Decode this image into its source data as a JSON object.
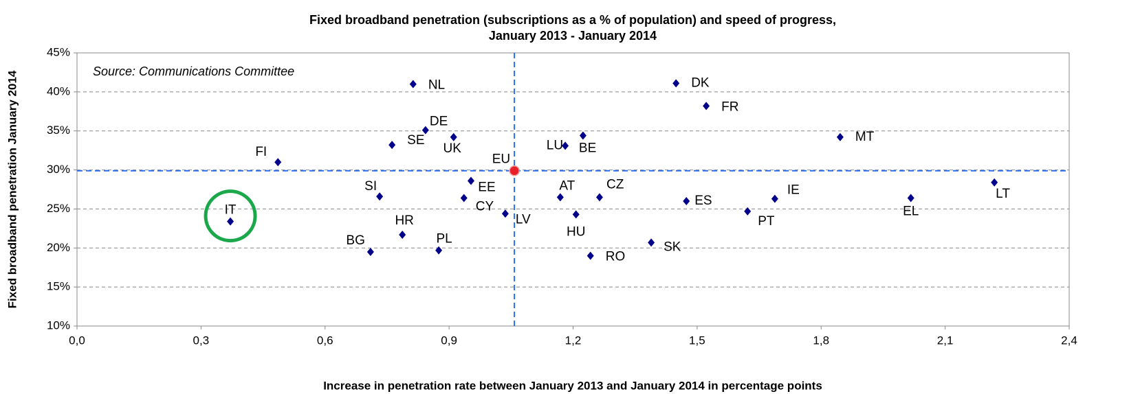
{
  "chart_data": {
    "type": "scatter",
    "title": [
      "Fixed broadband penetration (subscriptions as a % of population) and speed of progress,",
      "January 2013 - January 2014"
    ],
    "annotation": "Source: Communications Committee",
    "xlabel": "Increase in penetration rate between January 2013 and January 2014 in percentage points",
    "ylabel": "Fixed broadband penetration January 2014",
    "color": "#00008b",
    "highlight_color": "#e8202a",
    "reference_color": "#2a6cf0",
    "circle_color": "#1aa84a",
    "xlim": [
      0,
      2.4
    ],
    "xticks": [
      {
        "value": 0,
        "label": "0,0"
      },
      {
        "value": 0.3,
        "label": "0,3"
      },
      {
        "value": 0.6,
        "label": "0,6"
      },
      {
        "value": 0.9,
        "label": "0,9"
      },
      {
        "value": 1.2,
        "label": "1,2"
      },
      {
        "value": 1.5,
        "label": "1,5"
      },
      {
        "value": 1.8,
        "label": "1,8"
      },
      {
        "value": 2.1,
        "label": "2,1"
      },
      {
        "value": 2.4,
        "label": "2,4"
      }
    ],
    "ylim": [
      10,
      45
    ],
    "yticks": [
      {
        "value": 10,
        "label": "10%"
      },
      {
        "value": 15,
        "label": "15%"
      },
      {
        "value": 20,
        "label": "20%"
      },
      {
        "value": 25,
        "label": "25%"
      },
      {
        "value": 30,
        "label": "30%"
      },
      {
        "value": 35,
        "label": "35%"
      },
      {
        "value": 40,
        "label": "40%"
      },
      {
        "value": 45,
        "label": "45%"
      }
    ],
    "grid": true,
    "points": [
      {
        "label": "NL",
        "x": 0.813,
        "y": 41.0
      },
      {
        "label": "DE",
        "x": 0.843,
        "y": 35.1
      },
      {
        "label": "SE",
        "x": 0.762,
        "y": 33.2
      },
      {
        "label": "UK",
        "x": 0.911,
        "y": 34.2
      },
      {
        "label": "FI",
        "x": 0.486,
        "y": 31.0
      },
      {
        "label": "EU",
        "x": 1.058,
        "y": 29.9,
        "highlight": true
      },
      {
        "label": "SI",
        "x": 0.732,
        "y": 26.6
      },
      {
        "label": "IT",
        "x": 0.371,
        "y": 23.4,
        "circled": true
      },
      {
        "label": "HR",
        "x": 0.787,
        "y": 21.7
      },
      {
        "label": "BG",
        "x": 0.71,
        "y": 19.5
      },
      {
        "label": "PL",
        "x": 0.875,
        "y": 19.7
      },
      {
        "label": "EE",
        "x": 0.953,
        "y": 28.6
      },
      {
        "label": "CY",
        "x": 0.936,
        "y": 26.4
      },
      {
        "label": "LV",
        "x": 1.036,
        "y": 24.4
      },
      {
        "label": "AT",
        "x": 1.169,
        "y": 26.5
      },
      {
        "label": "CZ",
        "x": 1.264,
        "y": 26.5
      },
      {
        "label": "LU",
        "x": 1.181,
        "y": 33.1
      },
      {
        "label": "BE",
        "x": 1.224,
        "y": 34.4
      },
      {
        "label": "HU",
        "x": 1.207,
        "y": 24.3
      },
      {
        "label": "RO",
        "x": 1.242,
        "y": 19.0
      },
      {
        "label": "SK",
        "x": 1.389,
        "y": 20.7
      },
      {
        "label": "DK",
        "x": 1.449,
        "y": 41.1
      },
      {
        "label": "FR",
        "x": 1.522,
        "y": 38.2
      },
      {
        "label": "ES",
        "x": 1.474,
        "y": 26.0
      },
      {
        "label": "PT",
        "x": 1.622,
        "y": 24.7
      },
      {
        "label": "IE",
        "x": 1.688,
        "y": 26.3
      },
      {
        "label": "MT",
        "x": 1.846,
        "y": 34.2
      },
      {
        "label": "EL",
        "x": 2.017,
        "y": 26.4
      },
      {
        "label": "LT",
        "x": 2.219,
        "y": 28.4
      }
    ]
  }
}
